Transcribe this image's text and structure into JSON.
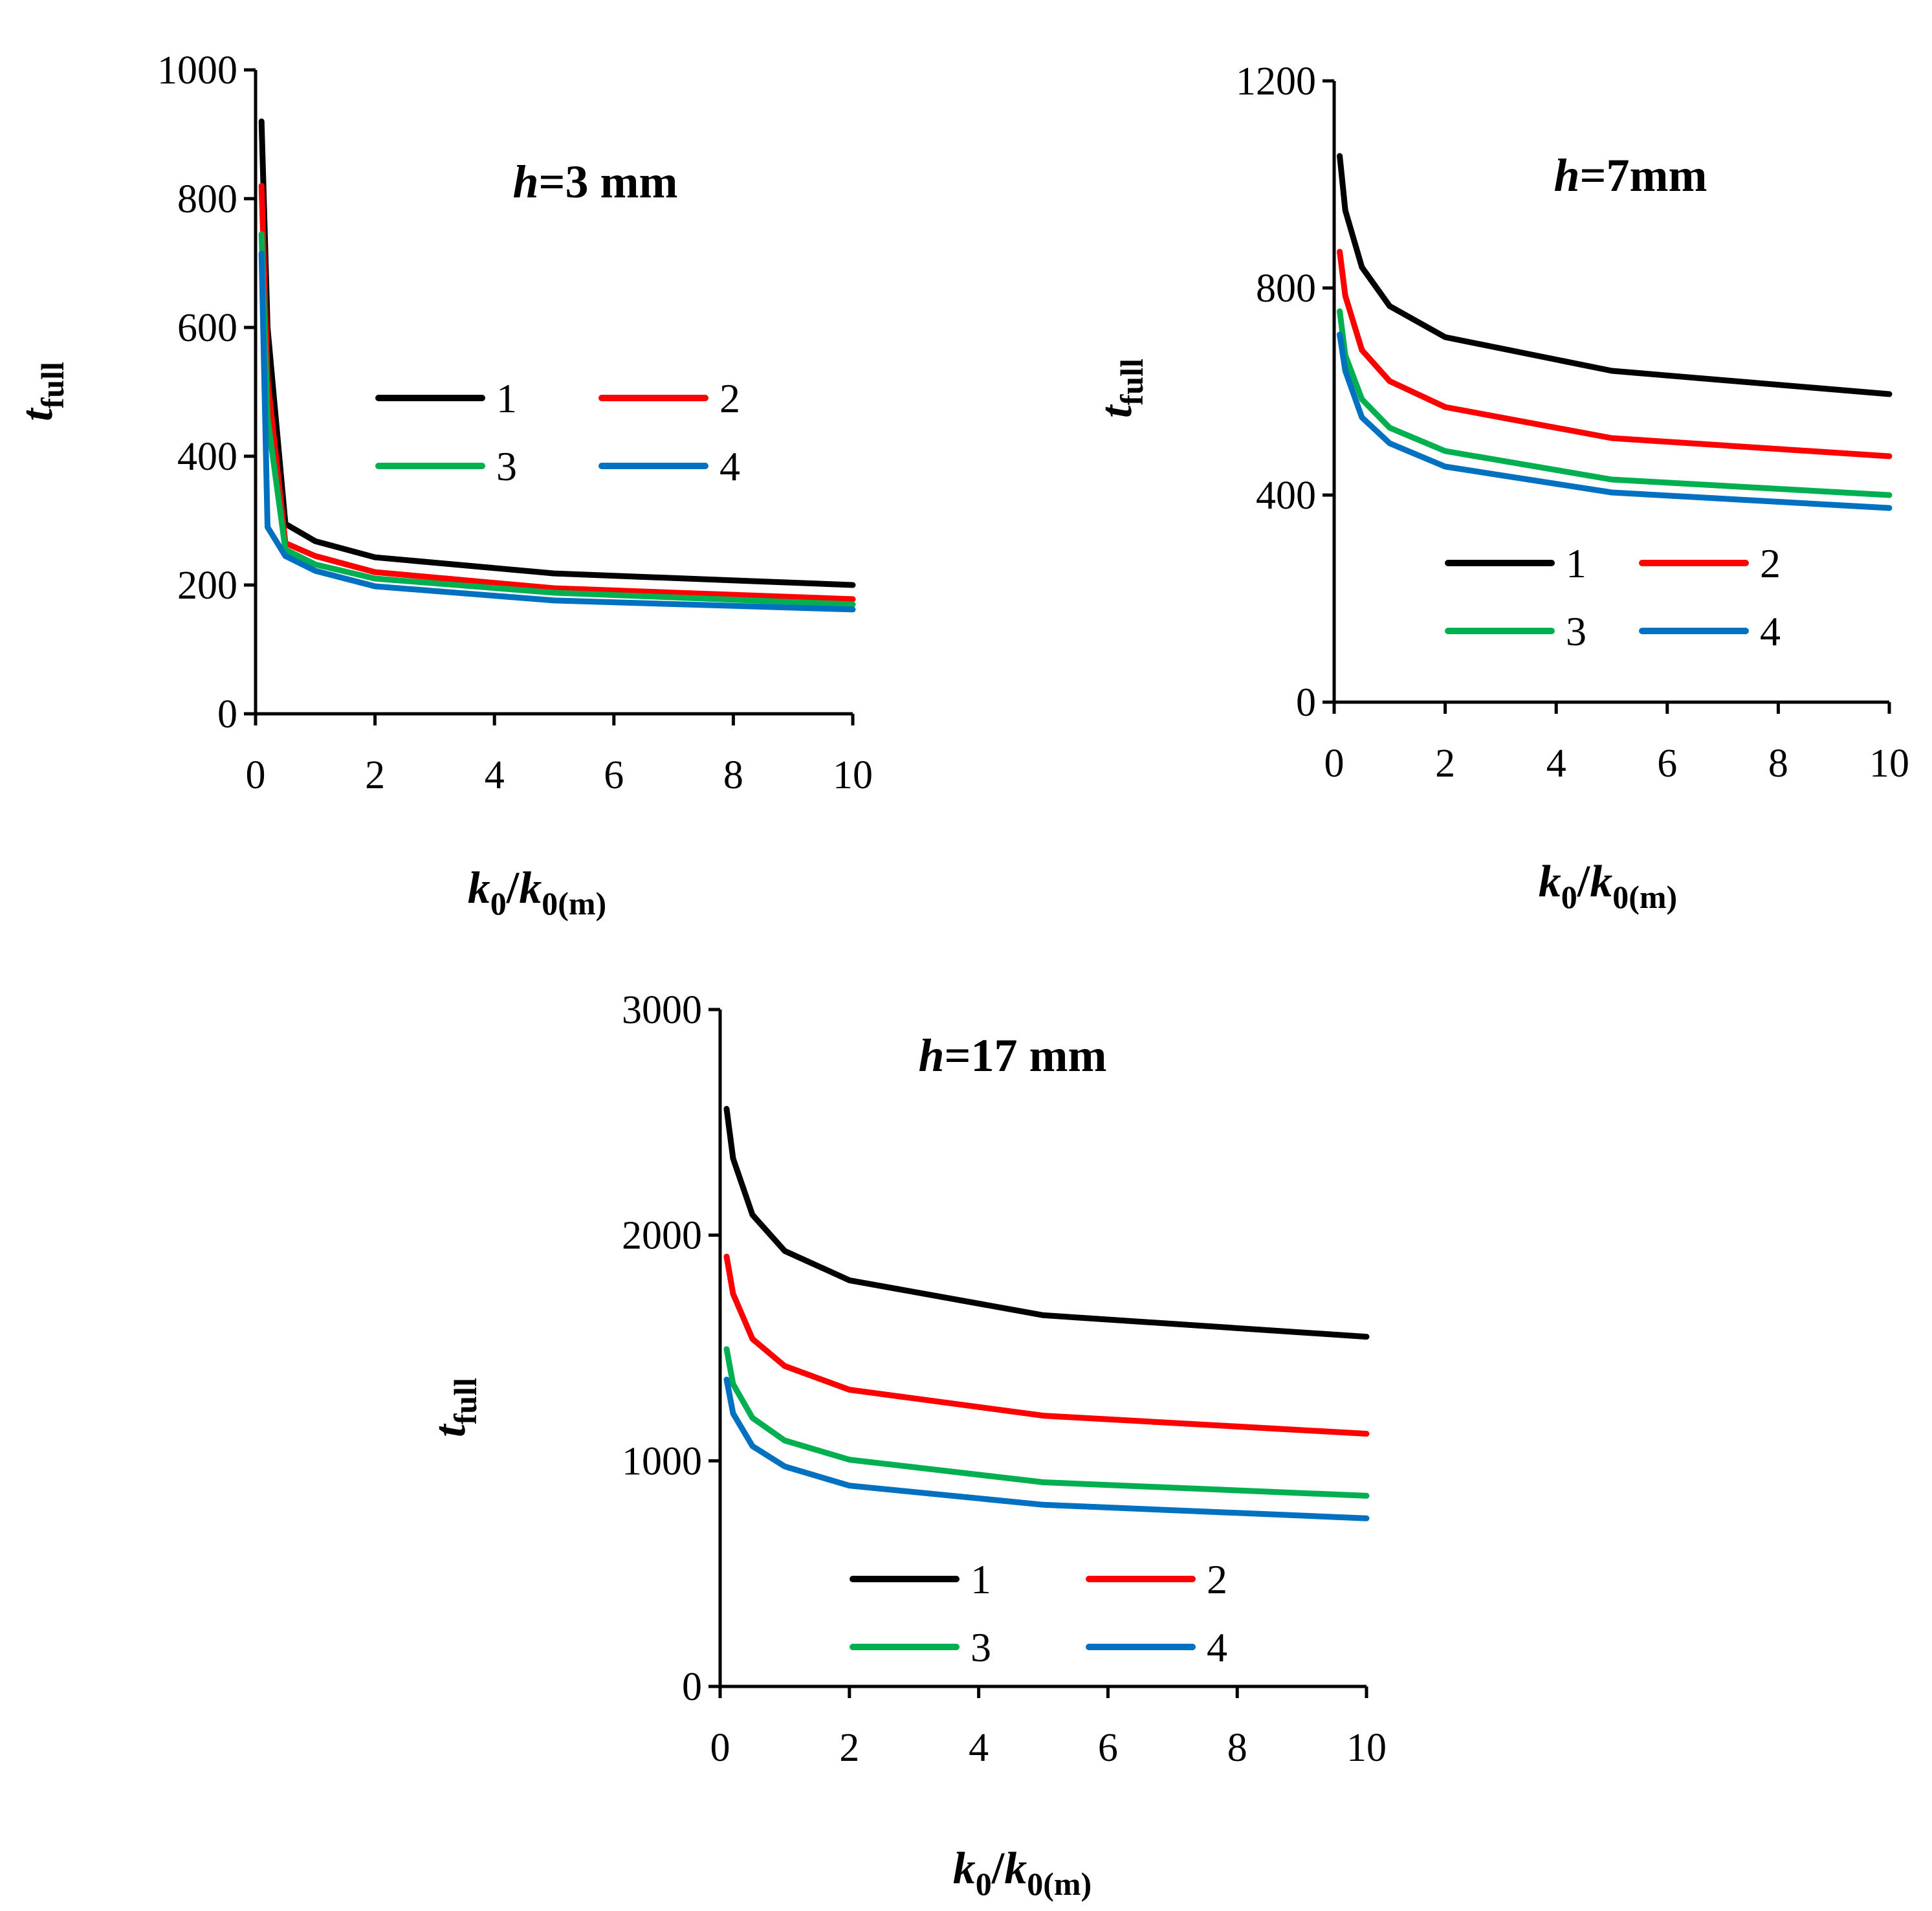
{
  "chart_data": [
    {
      "type": "line",
      "title_italic": "h",
      "title_rest": "=3 mm",
      "xlabel": {
        "base1": "k",
        "sub1": "0",
        "slash": "/",
        "base2": "k",
        "sub2": "0(m)"
      },
      "ylabel": {
        "base": "t",
        "sub": "full"
      },
      "xlim": [
        0,
        10
      ],
      "ylim": [
        0,
        1000
      ],
      "xticks": [
        0,
        2,
        4,
        6,
        8,
        10
      ],
      "yticks": [
        0,
        200,
        400,
        600,
        800,
        1000
      ],
      "legend_position": "upper-middle",
      "x": [
        0.1,
        0.2,
        0.5,
        1,
        2,
        5,
        10
      ],
      "series": [
        {
          "name": "1",
          "color": "#000000",
          "values": [
            920,
            600,
            295,
            268,
            243,
            218,
            200
          ]
        },
        {
          "name": "2",
          "color": "#ff0000",
          "values": [
            820,
            520,
            265,
            245,
            220,
            195,
            178
          ]
        },
        {
          "name": "3",
          "color": "#00b050",
          "values": [
            745,
            460,
            255,
            232,
            210,
            188,
            170
          ]
        },
        {
          "name": "4",
          "color": "#0070c0",
          "values": [
            715,
            290,
            245,
            222,
            198,
            176,
            162
          ]
        }
      ]
    },
    {
      "type": "line",
      "title_italic": "h",
      "title_rest": "=7mm",
      "xlabel": {
        "base1": "k",
        "sub1": "0",
        "slash": "/",
        "base2": "k",
        "sub2": "0(m)"
      },
      "ylabel": {
        "base": "t",
        "sub": "full"
      },
      "xlim": [
        0,
        10
      ],
      "ylim": [
        0,
        1200
      ],
      "xticks": [
        0,
        2,
        4,
        6,
        8,
        10
      ],
      "yticks": [
        0,
        400,
        800,
        1200
      ],
      "legend_position": "lower-middle",
      "x": [
        0.1,
        0.2,
        0.5,
        1,
        2,
        5,
        10
      ],
      "series": [
        {
          "name": "1",
          "color": "#000000",
          "values": [
            1055,
            950,
            840,
            765,
            705,
            640,
            595
          ]
        },
        {
          "name": "2",
          "color": "#ff0000",
          "values": [
            870,
            785,
            680,
            620,
            570,
            510,
            475
          ]
        },
        {
          "name": "3",
          "color": "#00b050",
          "values": [
            755,
            670,
            585,
            530,
            485,
            430,
            400
          ]
        },
        {
          "name": "4",
          "color": "#0070c0",
          "values": [
            710,
            640,
            550,
            500,
            455,
            405,
            375
          ]
        }
      ]
    },
    {
      "type": "line",
      "title_italic": "h",
      "title_rest": "=17 mm",
      "xlabel": {
        "base1": "k",
        "sub1": "0",
        "slash": "/",
        "base2": "k",
        "sub2": "0(m)"
      },
      "ylabel": {
        "base": "t",
        "sub": "full"
      },
      "xlim": [
        0,
        10
      ],
      "ylim": [
        0,
        3000
      ],
      "xticks": [
        0,
        2,
        4,
        6,
        8,
        10
      ],
      "yticks": [
        0,
        1000,
        2000,
        3000
      ],
      "legend_position": "lower-middle",
      "x": [
        0.1,
        0.2,
        0.5,
        1,
        2,
        5,
        10
      ],
      "series": [
        {
          "name": "1",
          "color": "#000000",
          "values": [
            2560,
            2340,
            2090,
            1930,
            1800,
            1645,
            1550
          ]
        },
        {
          "name": "2",
          "color": "#ff0000",
          "values": [
            1905,
            1740,
            1540,
            1420,
            1315,
            1200,
            1120
          ]
        },
        {
          "name": "3",
          "color": "#00b050",
          "values": [
            1495,
            1340,
            1190,
            1090,
            1005,
            905,
            845
          ]
        },
        {
          "name": "4",
          "color": "#0070c0",
          "values": [
            1360,
            1210,
            1065,
            975,
            890,
            805,
            745
          ]
        }
      ]
    }
  ]
}
